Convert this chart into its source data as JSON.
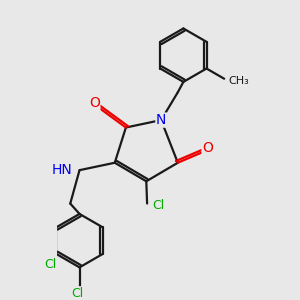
{
  "bg_color": "#e8e8e8",
  "bond_color": "#1a1a1a",
  "N_color": "#0000ee",
  "O_color": "#ee0000",
  "Cl_color": "#00aa00",
  "line_width": 1.6,
  "font_size_atom": 9,
  "fig_size": [
    3.0,
    3.0
  ],
  "dpi": 100,
  "xlim": [
    -0.5,
    4.5
  ],
  "ylim": [
    -4.2,
    3.5
  ]
}
